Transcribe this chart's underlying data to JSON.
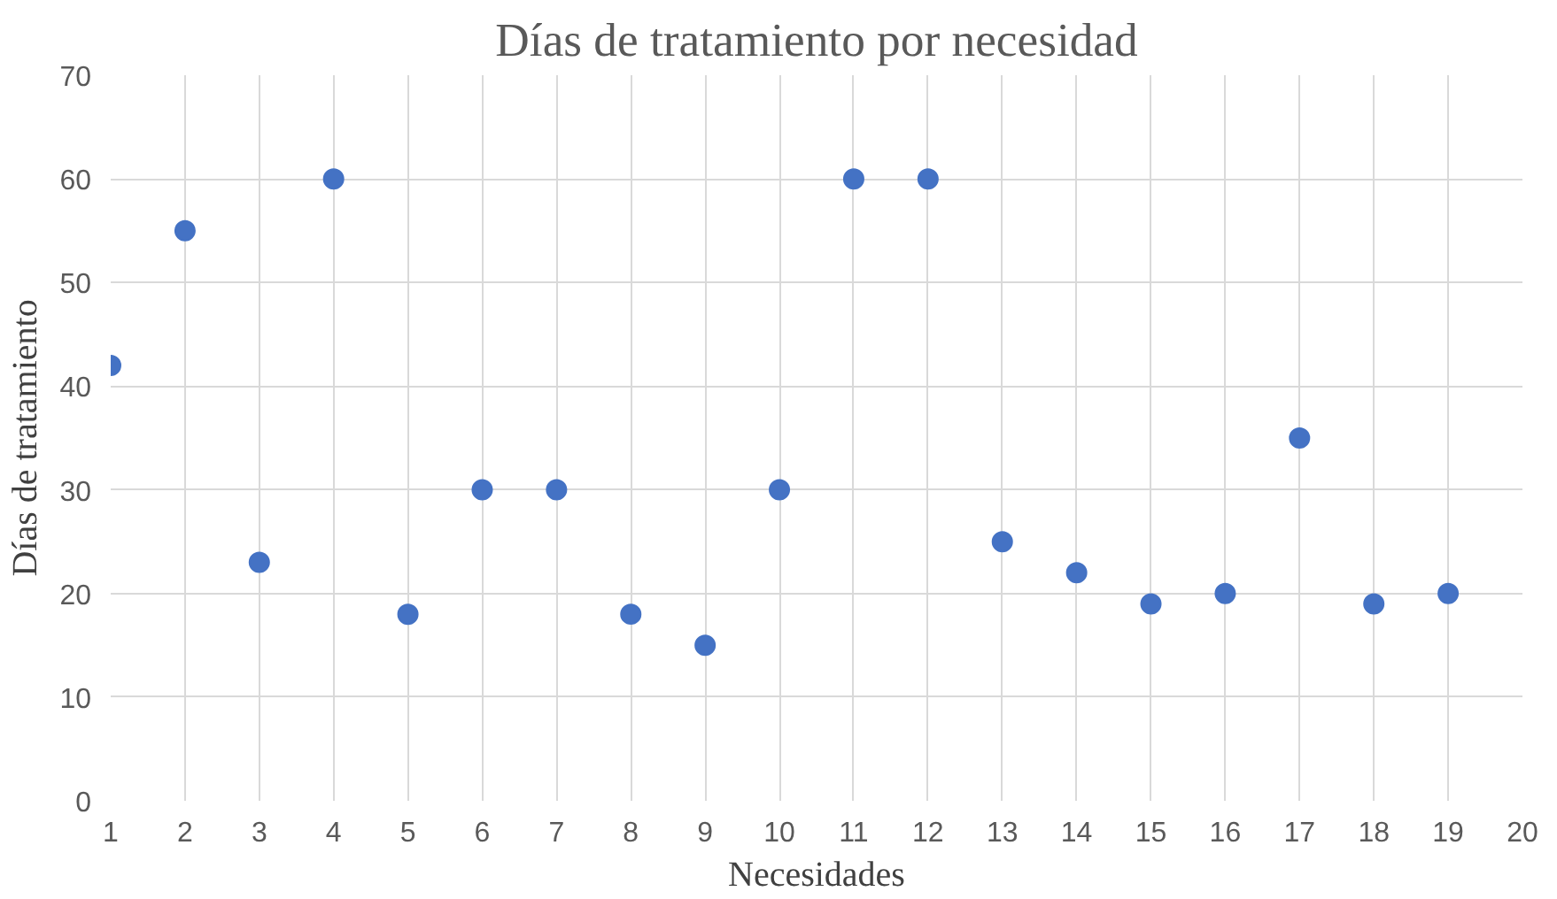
{
  "chart_data": {
    "type": "scatter",
    "title": "Días de tratamiento por necesidad",
    "xlabel": "Necesidades",
    "ylabel": "Días de tratamiento",
    "x": [
      1,
      2,
      3,
      4,
      5,
      6,
      7,
      8,
      9,
      10,
      11,
      12,
      13,
      14,
      15,
      16,
      17,
      18,
      19
    ],
    "series": [
      {
        "color": "#4472c4",
        "values": [
          42,
          55,
          23,
          60,
          18,
          30,
          30,
          18,
          15,
          30,
          60,
          60,
          25,
          22,
          19,
          20,
          35,
          19,
          20
        ]
      }
    ],
    "xlim": [
      1,
      20
    ],
    "xticks": [
      1,
      2,
      3,
      4,
      5,
      6,
      7,
      8,
      9,
      10,
      11,
      12,
      13,
      14,
      15,
      16,
      17,
      18,
      19,
      20
    ],
    "ylim": [
      0,
      70
    ],
    "yticks": [
      0,
      10,
      20,
      30,
      40,
      50,
      60,
      70
    ],
    "grid": true,
    "marker": "circle"
  }
}
